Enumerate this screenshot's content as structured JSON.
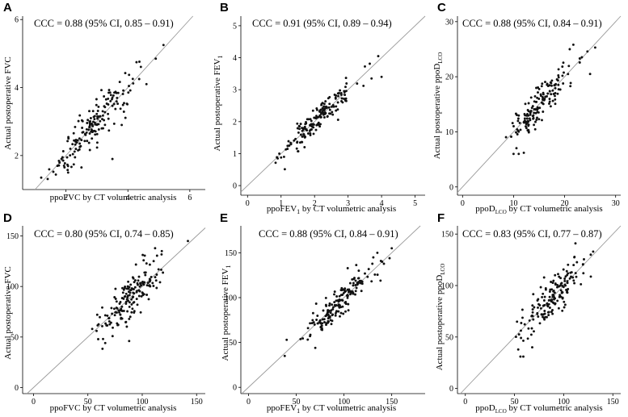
{
  "colors": {
    "points": "#111111",
    "identity_line": "#9a9a9a",
    "axes": "#000000"
  },
  "chart_data": [
    {
      "type": "scatter",
      "panel": "A",
      "annotation": "CCC = 0.88 (95% CI, 0.85 – 0.91)",
      "xlabel": "ppoFVC by CT volumetric analysis",
      "ylabel": "Actual postoperative FVC",
      "xlim": [
        0.6,
        6.5
      ],
      "ylim": [
        1.0,
        6.1
      ],
      "xticks": [
        2,
        4,
        6
      ],
      "yticks": [
        2,
        4,
        6
      ],
      "tick_labels_x": [
        "2",
        "4",
        "6"
      ],
      "tick_labels_y": [
        "2",
        "4",
        "6"
      ],
      "identity_line": true,
      "n_points": 170,
      "cloud": {
        "x_center": 2.9,
        "x_sd": 0.7,
        "x_min": 1.2,
        "x_max": 5.2,
        "y_noise_sd": 0.3
      },
      "points": [
        [
          1.2,
          1.35
        ],
        [
          2.5,
          1.65
        ],
        [
          3.5,
          1.9
        ],
        [
          3.8,
          2.9
        ],
        [
          4.6,
          4.1
        ],
        [
          5.15,
          5.25
        ],
        [
          4.9,
          4.85
        ]
      ]
    },
    {
      "type": "scatter",
      "panel": "B",
      "annotation": "CCC = 0.91 (95% CI, 0.89 – 0.94)",
      "xlabel": "ppoFEV1 by CT volumetric analysis",
      "ylabel": "Actual postoperative FEV1",
      "xlim": [
        -0.2,
        5.3
      ],
      "ylim": [
        -0.3,
        5.3
      ],
      "xticks": [
        0,
        1,
        2,
        3,
        4,
        5
      ],
      "yticks": [
        0,
        1,
        2,
        3,
        4,
        5
      ],
      "tick_labels_x": [
        "0",
        "1",
        "2",
        "3",
        "4",
        "5"
      ],
      "tick_labels_y": [
        "0",
        "1",
        "2",
        "3",
        "4",
        "5"
      ],
      "identity_line": true,
      "n_points": 170,
      "cloud": {
        "x_center": 2.1,
        "x_sd": 0.55,
        "x_min": 0.8,
        "x_max": 3.8,
        "y_noise_sd": 0.2
      },
      "points": [
        [
          0.9,
          0.85
        ],
        [
          1.7,
          1.2
        ],
        [
          3.7,
          3.35
        ],
        [
          3.9,
          4.05
        ],
        [
          4.0,
          3.4
        ]
      ]
    },
    {
      "type": "scatter",
      "panel": "C",
      "annotation": "CCC = 0.88 (95% CI, 0.84 – 0.91)",
      "xlabel": "ppoDLCO by CT volumetric analysis",
      "ylabel": "Actual postoperative ppoDLCO",
      "xlim": [
        -1,
        31
      ],
      "ylim": [
        -1.5,
        31
      ],
      "xticks": [
        0,
        10,
        20,
        30
      ],
      "yticks": [
        0,
        10,
        20,
        30
      ],
      "tick_labels_x": [
        "0",
        "10",
        "20",
        "30"
      ],
      "tick_labels_y": [
        "0",
        "10",
        "20",
        "30"
      ],
      "identity_line": true,
      "n_points": 160,
      "cloud": {
        "x_center": 15.0,
        "x_sd": 3.6,
        "x_min": 8.5,
        "x_max": 26.0,
        "y_noise_sd": 1.6
      },
      "points": [
        [
          10.0,
          6.0
        ],
        [
          11.0,
          6.0
        ],
        [
          12.0,
          6.2
        ],
        [
          26.0,
          25.3
        ],
        [
          21.0,
          25.0
        ],
        [
          25.0,
          20.5
        ]
      ]
    },
    {
      "type": "scatter",
      "panel": "D",
      "annotation": "CCC = 0.80 (95% CI, 0.74 – 0.85)",
      "xlabel": "ppoFVC by CT volumetric analysis",
      "ylabel": "Actual postoperative FVC",
      "xlim": [
        -10,
        158
      ],
      "ylim": [
        -6,
        160
      ],
      "xticks": [
        0,
        50,
        100,
        150
      ],
      "yticks": [
        0,
        50,
        100,
        150
      ],
      "tick_labels_x": [
        "0",
        "50",
        "100",
        "150"
      ],
      "tick_labels_y": [
        "0",
        "50",
        "100",
        "150"
      ],
      "identity_line": true,
      "n_points": 170,
      "cloud": {
        "x_center": 88,
        "x_sd": 15,
        "x_min": 55,
        "x_max": 125,
        "y_noise_sd": 11
      },
      "points": [
        [
          54,
          58
        ],
        [
          64,
          48
        ],
        [
          66,
          44
        ],
        [
          88,
          46
        ],
        [
          142,
          145
        ],
        [
          118,
          135
        ]
      ]
    },
    {
      "type": "scatter",
      "panel": "E",
      "annotation": "CCC = 0.88 (95% CI, 0.84 – 0.91)",
      "xlabel": "ppoFEV1 by CT volumetric analysis",
      "ylabel": "Actual postoperative FEV1",
      "xlim": [
        -8,
        185
      ],
      "ylim": [
        -7,
        180
      ],
      "xticks": [
        0,
        50,
        100,
        150
      ],
      "yticks": [
        0,
        50,
        100,
        150
      ],
      "tick_labels_x": [
        "0",
        "50",
        "100",
        "150"
      ],
      "tick_labels_y": [
        "0",
        "50",
        "100",
        "150"
      ],
      "identity_line": true,
      "n_points": 170,
      "cloud": {
        "x_center": 95,
        "x_sd": 18,
        "x_min": 38,
        "x_max": 150,
        "y_noise_sd": 9
      },
      "points": [
        [
          38,
          35
        ],
        [
          40,
          53
        ],
        [
          70,
          44
        ],
        [
          140,
          140
        ],
        [
          150,
          155
        ],
        [
          135,
          150
        ]
      ]
    },
    {
      "type": "scatter",
      "panel": "F",
      "annotation": "CCC = 0.83 (95% CI, 0.77 – 0.87)",
      "xlabel": "ppoDLCO by CT volumetric analysis",
      "ylabel": "Actual postoperative ppoDLCO",
      "xlim": [
        -8,
        158
      ],
      "ylim": [
        -5,
        158
      ],
      "xticks": [
        0,
        50,
        100,
        150
      ],
      "yticks": [
        0,
        50,
        100,
        150
      ],
      "tick_labels_x": [
        "0",
        "50",
        "100",
        "150"
      ],
      "tick_labels_y": [
        "0",
        "50",
        "100",
        "150"
      ],
      "identity_line": true,
      "n_points": 160,
      "cloud": {
        "x_center": 85,
        "x_sd": 17,
        "x_min": 50,
        "x_max": 130,
        "y_noise_sd": 10
      },
      "points": [
        [
          56,
          31
        ],
        [
          59,
          31
        ],
        [
          68,
          40
        ],
        [
          112,
          141
        ],
        [
          130,
          133
        ],
        [
          120,
          112
        ]
      ]
    }
  ]
}
